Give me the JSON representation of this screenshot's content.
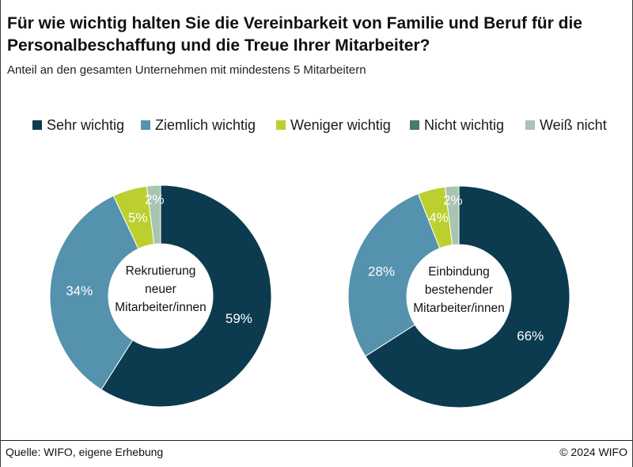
{
  "chart_data": {
    "type": "pie",
    "style": "donut",
    "title": "Für wie wichtig halten Sie die Vereinbarkeit von Familie und Beruf für die Personalbeschaffung und die Treue Ihrer Mitarbeiter?",
    "subtitle": "Anteil an den gesamten Unternehmen mit mindestens 5 Mitarbeitern",
    "legend_position": "top",
    "categories": [
      "Sehr wichtig",
      "Ziemlich wichtig",
      "Weniger wichtig",
      "Nicht wichtig",
      "Weiß nicht"
    ],
    "colors": [
      "#0c3b50",
      "#5592ae",
      "#bccf2f",
      "#4a7a6f",
      "#a8c4b2"
    ],
    "unit": "%",
    "series": [
      {
        "name": "Rekrutierung neuer Mitarbeiter/innen",
        "values": [
          59,
          34,
          5,
          0,
          2
        ]
      },
      {
        "name": "Einbindung bestehender Mitarbeiter/innen",
        "values": [
          66,
          28,
          4,
          0,
          2
        ]
      }
    ]
  },
  "footer": {
    "source": "Quelle: WIFO, eigene Erhebung",
    "copyright": "© 2024 WIFO"
  }
}
